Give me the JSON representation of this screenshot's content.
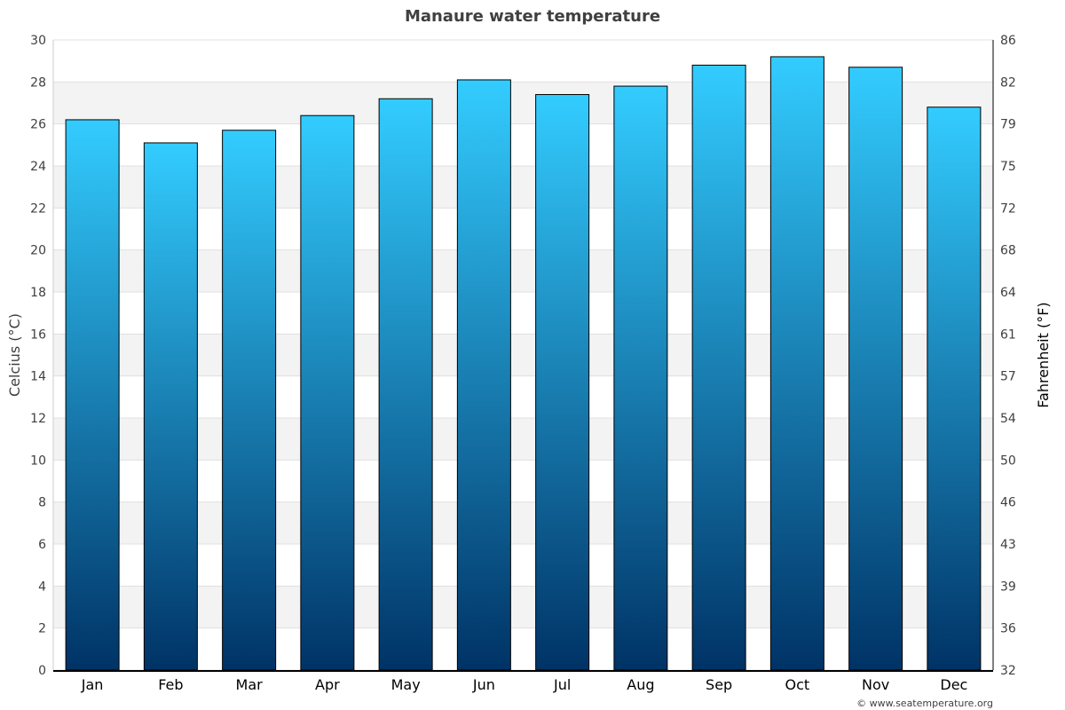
{
  "chart_data": {
    "type": "bar",
    "title": "Manaure water temperature",
    "categories": [
      "Jan",
      "Feb",
      "Mar",
      "Apr",
      "May",
      "Jun",
      "Jul",
      "Aug",
      "Sep",
      "Oct",
      "Nov",
      "Dec"
    ],
    "values": [
      26.2,
      25.1,
      25.7,
      26.4,
      27.2,
      28.1,
      27.4,
      27.8,
      28.8,
      29.2,
      28.7,
      26.8
    ],
    "ylabel": "Celcius (°C)",
    "ylabel_right": "Fahrenheit (°F)",
    "ylim": [
      0,
      30
    ],
    "yticks": [
      0,
      2,
      4,
      6,
      8,
      10,
      12,
      14,
      16,
      18,
      20,
      22,
      24,
      26,
      28,
      30
    ],
    "yticks_right": [
      "32",
      "36",
      "39",
      "43",
      "46",
      "50",
      "54",
      "57",
      "61",
      "64",
      "68",
      "72",
      "75",
      "79",
      "82",
      "86"
    ],
    "grid": true,
    "colors": {
      "bar_top": "#33ccff",
      "bar_bottom": "#003366",
      "band": "#f3f3f3",
      "grid": "#e0e0e0"
    }
  },
  "credit": "© www.seatemperature.org"
}
